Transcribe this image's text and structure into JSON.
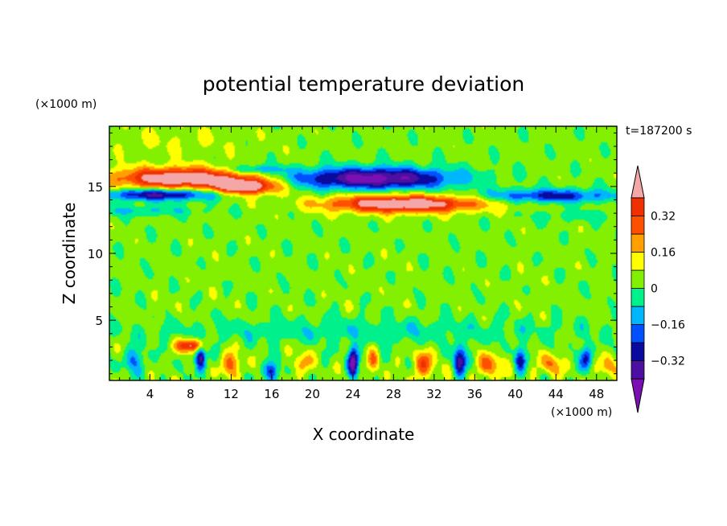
{
  "chart_data": {
    "type": "heatmap",
    "title": "potential temperature deviation",
    "xlabel": "X coordinate",
    "ylabel": "Z coordinate",
    "x_unit": "(×1000 m)",
    "y_unit": "(×1000 m)",
    "time_label": "t=187200 s",
    "xlim": [
      0,
      50
    ],
    "ylim": [
      0.5,
      19.5
    ],
    "x_ticks": [
      4,
      8,
      12,
      16,
      20,
      24,
      28,
      32,
      36,
      40,
      44,
      48
    ],
    "y_ticks": [
      5,
      10,
      15
    ],
    "colorbar": {
      "levels": [
        -0.4,
        -0.32,
        -0.24,
        -0.16,
        -0.08,
        0,
        0.08,
        0.16,
        0.24,
        0.32,
        0.4
      ],
      "tick_labels": [
        "0.32",
        "0.16",
        "0",
        "−0.16",
        "−0.32"
      ],
      "tick_values": [
        0.32,
        0.16,
        0,
        -0.16,
        -0.32
      ],
      "colors": [
        "#7a10b4",
        "#4c0fa0",
        "#0a0a9e",
        "#0050ff",
        "#00b6ff",
        "#00f08c",
        "#82f000",
        "#ffff00",
        "#ffa000",
        "#ff5000",
        "#f03000",
        "#f5a6a6"
      ]
    },
    "field": {
      "background": 0.03,
      "features": [
        {
          "x": 7,
          "z": 15.6,
          "rx": 6.5,
          "rz": 0.8,
          "amp": 0.5
        },
        {
          "x": 13.5,
          "z": 15.0,
          "rx": 3.2,
          "rz": 0.6,
          "amp": 0.48
        },
        {
          "x": 29,
          "z": 13.7,
          "rx": 7.5,
          "rz": 0.65,
          "amp": 0.5
        },
        {
          "x": 5,
          "z": 14.4,
          "rx": 5.5,
          "rz": 0.45,
          "amp": -0.4
        },
        {
          "x": 26,
          "z": 15.6,
          "rx": 8,
          "rz": 0.8,
          "amp": -0.48
        },
        {
          "x": 43.5,
          "z": 14.3,
          "rx": 6.5,
          "rz": 0.5,
          "amp": -0.3
        },
        {
          "x": 14.5,
          "z": 16.3,
          "rx": 2.5,
          "rz": 0.3,
          "amp": -0.2
        },
        {
          "x": 3,
          "z": 13.2,
          "rx": 6,
          "rz": 0.4,
          "amp": -0.12
        },
        {
          "x": 46,
          "z": 12.8,
          "rx": 5,
          "rz": 0.4,
          "amp": -0.08
        },
        {
          "x": 8,
          "z": 3.1,
          "rx": 1.2,
          "rz": 0.5,
          "amp": 0.45
        },
        {
          "x": 9,
          "z": 2.2,
          "rx": 0.5,
          "rz": 0.9,
          "amp": -0.45
        },
        {
          "x": 2.5,
          "z": 2.0,
          "rx": 1,
          "rz": 0.9,
          "amp": -0.2
        },
        {
          "x": 12,
          "z": 1.7,
          "rx": 1,
          "rz": 0.9,
          "amp": 0.24
        },
        {
          "x": 16,
          "z": 1.2,
          "rx": 0.7,
          "rz": 0.7,
          "amp": -0.32
        },
        {
          "x": 19,
          "z": 1.8,
          "rx": 0.8,
          "rz": 0.8,
          "amp": 0.2
        },
        {
          "x": 24,
          "z": 1.9,
          "rx": 0.5,
          "rz": 1.1,
          "amp": -0.45
        },
        {
          "x": 26,
          "z": 1.9,
          "rx": 0.5,
          "rz": 1.0,
          "amp": 0.2
        },
        {
          "x": 31,
          "z": 1.7,
          "rx": 1.2,
          "rz": 1.0,
          "amp": 0.24
        },
        {
          "x": 34.5,
          "z": 2.0,
          "rx": 0.6,
          "rz": 1.1,
          "amp": -0.4
        },
        {
          "x": 37.5,
          "z": 1.6,
          "rx": 1.1,
          "rz": 0.9,
          "amp": 0.25
        },
        {
          "x": 40.5,
          "z": 2.1,
          "rx": 0.5,
          "rz": 0.9,
          "amp": -0.3
        },
        {
          "x": 43.5,
          "z": 1.7,
          "rx": 1,
          "rz": 0.8,
          "amp": 0.22
        },
        {
          "x": 47,
          "z": 2.2,
          "rx": 0.6,
          "rz": 0.9,
          "amp": -0.3
        },
        {
          "x": 49,
          "z": 1.5,
          "rx": 0.8,
          "rz": 0.8,
          "amp": 0.2
        },
        {
          "x": 25,
          "z": 4.2,
          "rx": 22,
          "rz": 0.9,
          "amp": -0.09
        },
        {
          "x": 6,
          "z": 18.5,
          "rx": 8,
          "rz": 1.2,
          "amp": 0.05
        }
      ]
    }
  }
}
